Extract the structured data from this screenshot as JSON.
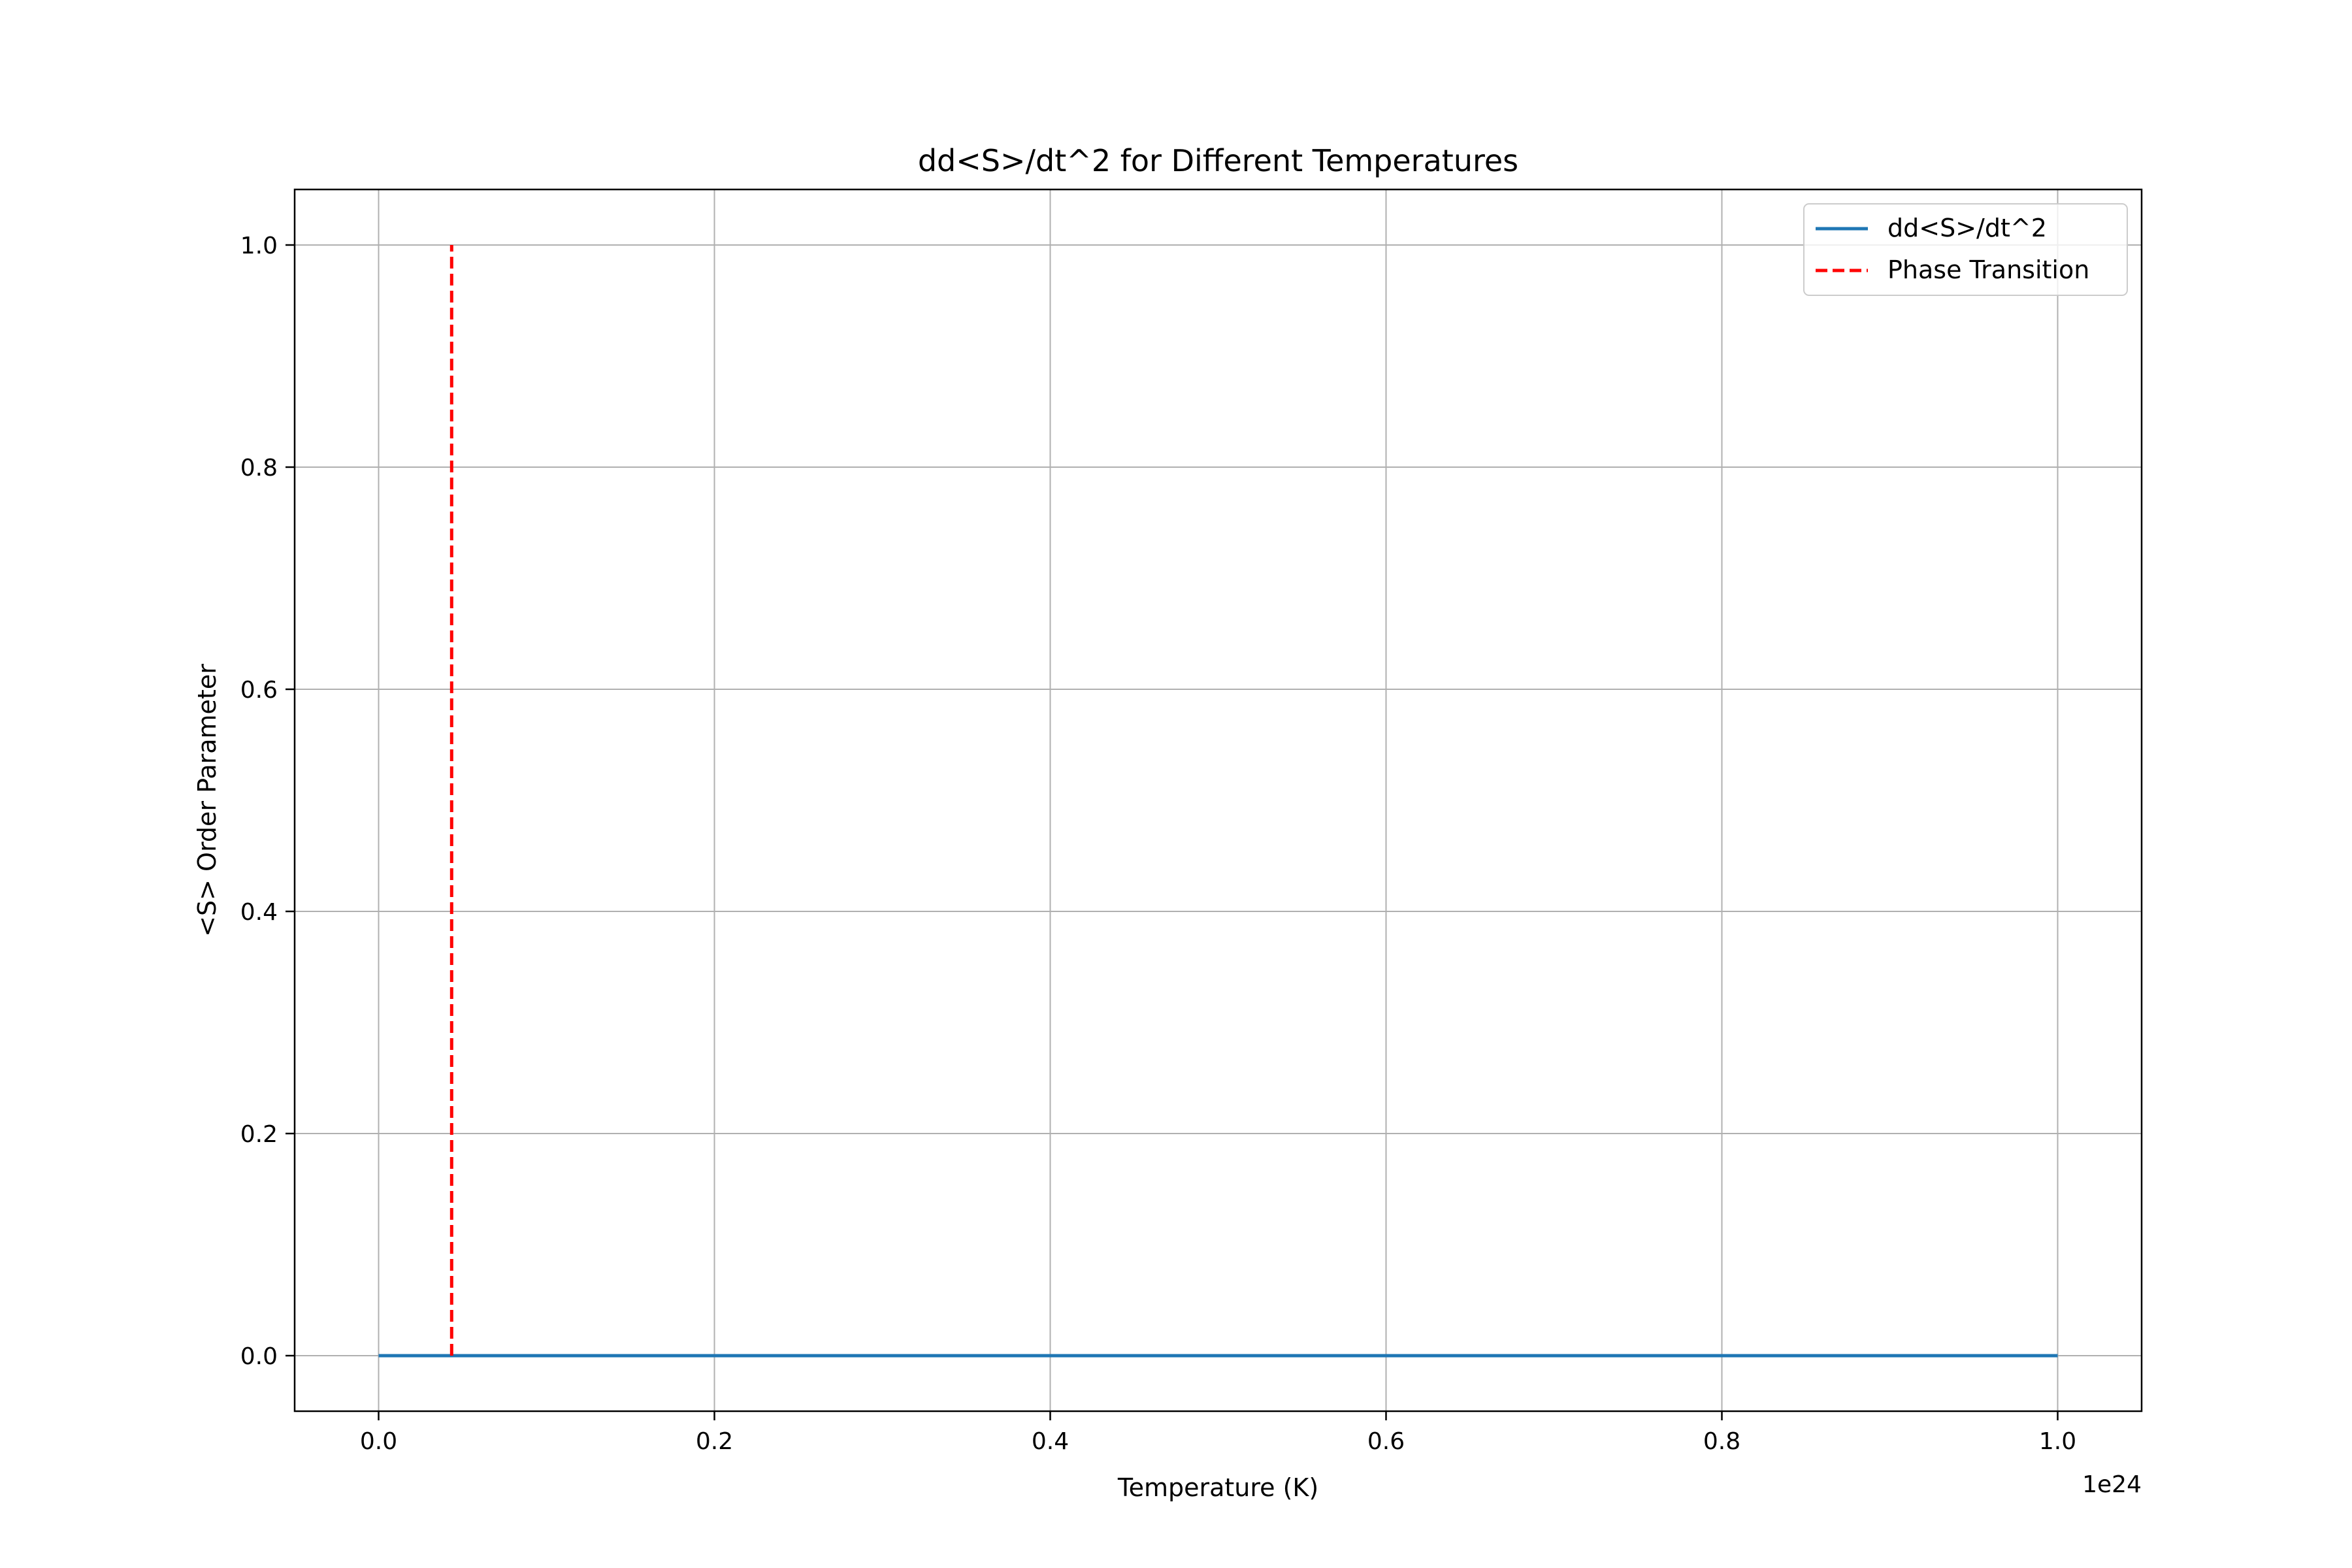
{
  "chart_data": {
    "type": "line",
    "title": "dd<S>/dt^2 for Different Temperatures",
    "xlabel": "Temperature (K)",
    "ylabel": "<S> Order Parameter",
    "x_offset_label": "1e24",
    "x_scale": 1e+24,
    "xlim": [
      -0.05,
      1.05
    ],
    "ylim": [
      -0.05,
      1.05
    ],
    "x_ticks": [
      0.0,
      0.2,
      0.4,
      0.6,
      0.8,
      1.0
    ],
    "y_ticks": [
      0.0,
      0.2,
      0.4,
      0.6,
      0.8,
      1.0
    ],
    "x_tick_labels": [
      "0.0",
      "0.2",
      "0.4",
      "0.6",
      "0.8",
      "1.0"
    ],
    "y_tick_labels": [
      "0.0",
      "0.2",
      "0.4",
      "0.6",
      "0.8",
      "1.0"
    ],
    "grid": true,
    "legend_position": "top-right",
    "series": [
      {
        "name": "dd<S>/dt^2",
        "style": "solid",
        "color": "#1f77b4",
        "x": [
          0.0,
          0.1,
          0.2,
          0.3,
          0.4,
          0.5,
          0.6,
          0.7,
          0.8,
          0.9,
          1.0
        ],
        "y": [
          0.0,
          0.0,
          0.0,
          0.0,
          0.0,
          0.0,
          0.0,
          0.0,
          0.0,
          0.0,
          0.0
        ]
      },
      {
        "name": "Phase Transition",
        "style": "dashed",
        "color": "#ff0000",
        "x": [
          0.0435,
          0.0435
        ],
        "y": [
          0.0,
          1.0
        ]
      }
    ]
  }
}
